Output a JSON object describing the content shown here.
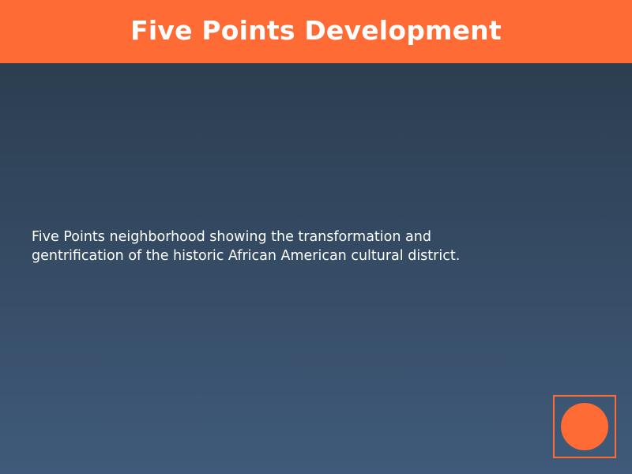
{
  "header": {
    "title": "Five Points Development"
  },
  "main": {
    "description": "Five Points neighborhood showing the transformation and gentrification of the historic African American cultural district."
  },
  "colors": {
    "accent": "#ff6b35",
    "background_top": "#2c3e50",
    "background_bottom": "#3f5a7a",
    "text": "#ffffff"
  },
  "icons": {
    "badge": "circle-icon"
  }
}
